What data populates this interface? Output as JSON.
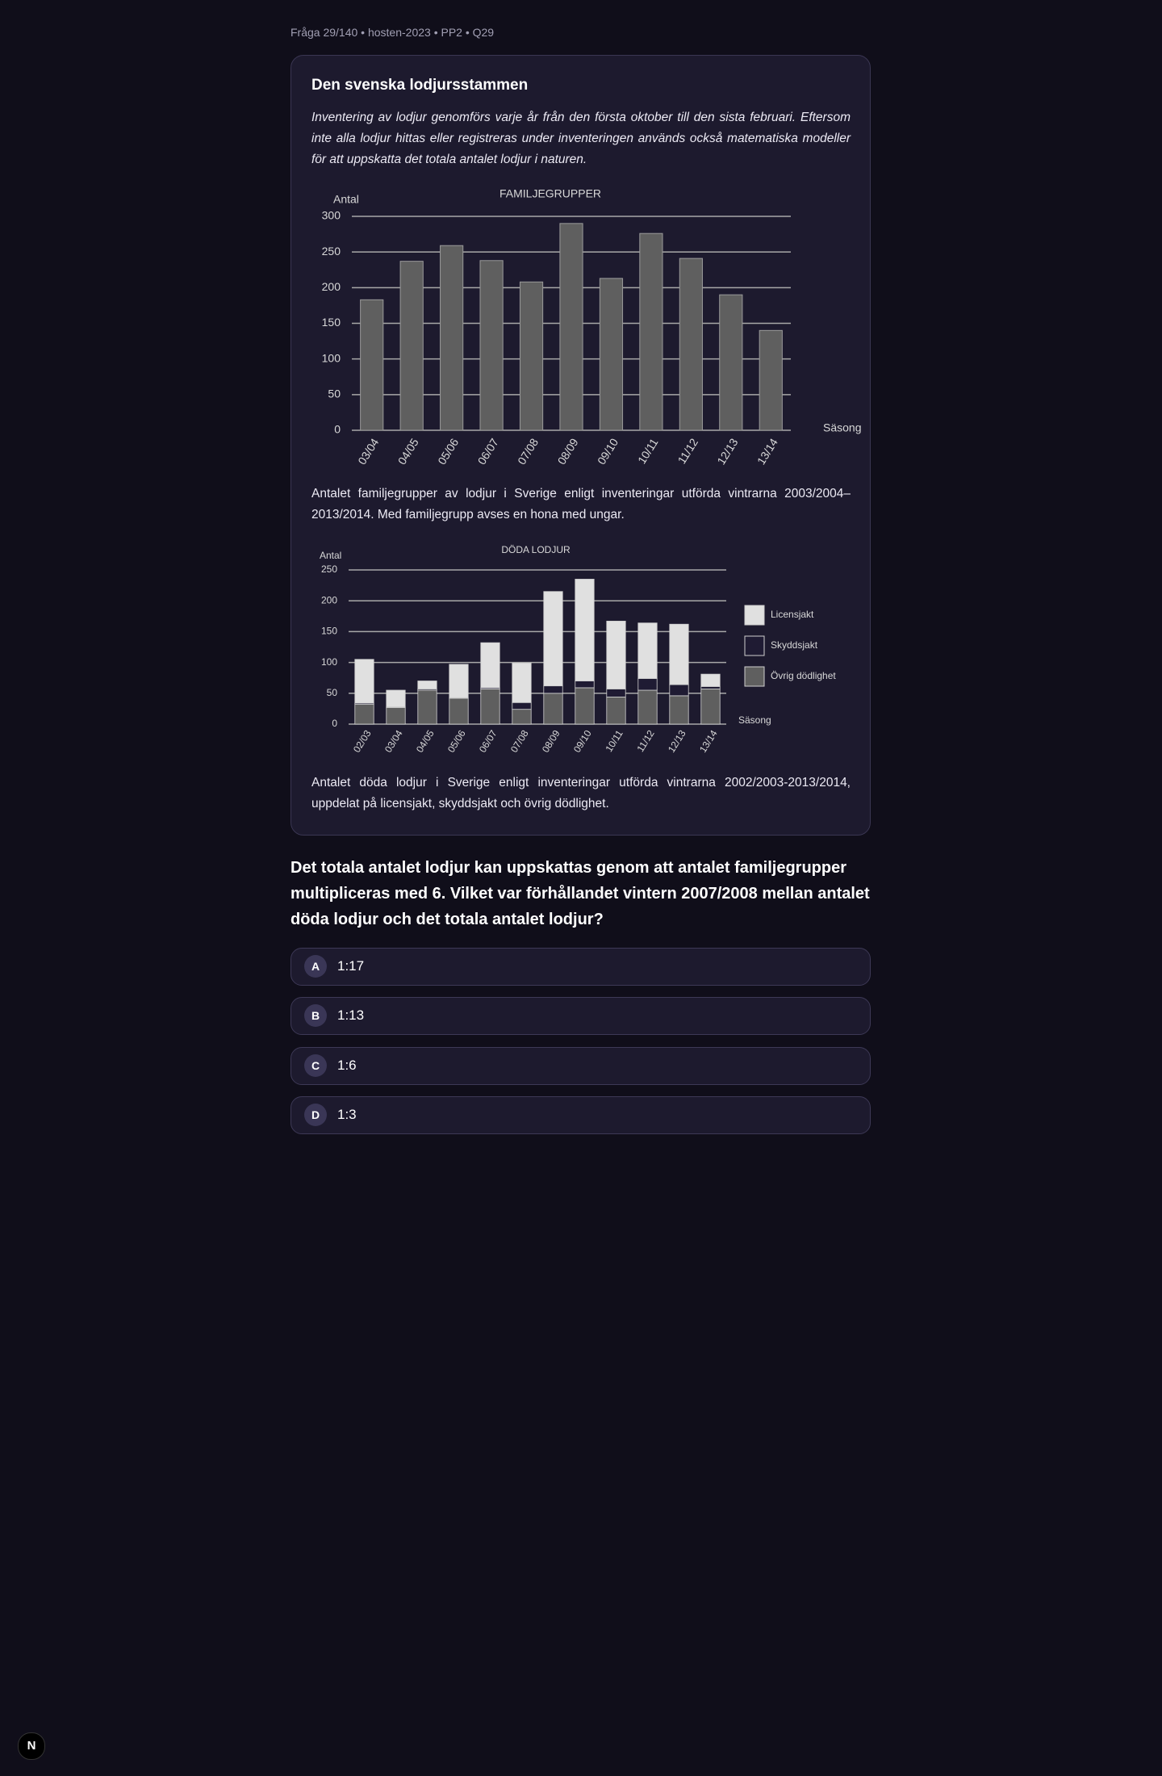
{
  "header": {
    "meta": "Fråga 29/140 • hosten-2023 • PP2 • Q29"
  },
  "passage": {
    "title": "Den svenska lodjursstammen",
    "intro": "Inventering av lodjur genomförs varje år från den första oktober till den sista februari. Eftersom inte alla lodjur hittas eller registreras under inventeringen används också matematiska modeller för att uppskatta det totala antalet lodjur i naturen.",
    "captions": [
      "Antalet familjegrupper av lodjur i Sverige enligt inventeringar utförda vintrarna 2003/2004–2013/2014. Med familjegrupp avses en hona med ungar.",
      "Antalet döda lodjur i Sverige enligt inventeringar utförda vintrarna 2002/2003-2013/2014, uppdelat på licensjakt, skyddsjakt och övrig dödlighet."
    ]
  },
  "chart_data": [
    {
      "type": "bar",
      "title": "FAMILJEGRUPPER",
      "y_label": "Antal",
      "x_label": "Säsong",
      "categories": [
        "03/04",
        "04/05",
        "05/06",
        "06/07",
        "07/08",
        "08/09",
        "09/10",
        "10/11",
        "11/12",
        "12/13",
        "13/14"
      ],
      "values": [
        183,
        237,
        259,
        238,
        208,
        290,
        213,
        276,
        241,
        190,
        140
      ],
      "color": "#5f5f5f",
      "ylim": [
        0,
        300
      ],
      "yticks": [
        0,
        50,
        100,
        150,
        200,
        250,
        300
      ],
      "grid": true
    },
    {
      "type": "stacked_bar",
      "title": "DÖDA LODJUR",
      "y_label": "Antal",
      "x_label": "Säsong",
      "categories": [
        "02/03",
        "03/04",
        "04/05",
        "05/06",
        "06/07",
        "07/08",
        "08/09",
        "09/10",
        "10/11",
        "11/12",
        "12/13",
        "13/14"
      ],
      "series": [
        {
          "name": "Licensjakt",
          "color": "#e0e0e0",
          "values": [
            71,
            27,
            13,
            54,
            73,
            64,
            153,
            165,
            110,
            90,
            98,
            20
          ]
        },
        {
          "name": "Skyddsjakt",
          "color": "#1f1b33",
          "values": [
            2,
            1,
            2,
            1,
            2,
            11,
            12,
            11,
            13,
            19,
            18,
            4
          ]
        },
        {
          "name": "Övrig dödlighet",
          "color": "#5f5f5f",
          "values": [
            32,
            27,
            55,
            42,
            57,
            24,
            50,
            59,
            44,
            55,
            46,
            57
          ]
        }
      ],
      "ylim": [
        0,
        250
      ],
      "yticks": [
        0,
        50,
        100,
        150,
        200,
        250
      ],
      "grid": true,
      "legend": "right"
    }
  ],
  "question": "Det totala antalet lodjur kan uppskattas genom att antalet familjegrupper multipliceras med 6. Vilket var förhållandet vintern 2007/2008 mellan antalet döda lodjur och det totala antalet lodjur?",
  "options": [
    {
      "letter": "A",
      "text": "1:17"
    },
    {
      "letter": "B",
      "text": "1:13"
    },
    {
      "letter": "C",
      "text": "1:6"
    },
    {
      "letter": "D",
      "text": "1:3"
    }
  ],
  "dev_badge": "N"
}
